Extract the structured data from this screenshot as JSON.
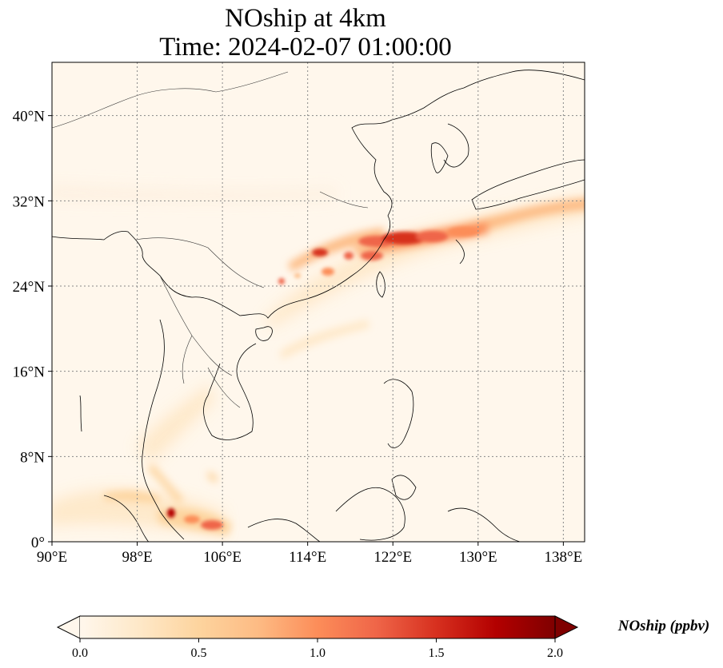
{
  "title": {
    "line1": "NOship at 4km",
    "line2": "Time: 2024-02-07 01:00:00"
  },
  "map": {
    "projection": "PlateCarree",
    "extent": {
      "lon": [
        90,
        140
      ],
      "lat": [
        0,
        45
      ]
    },
    "gridlines": "dotted",
    "coastlines": true,
    "borders": true,
    "lon_ticks": [
      {
        "value": 90,
        "label": "90°E"
      },
      {
        "value": 98,
        "label": "98°E"
      },
      {
        "value": 106,
        "label": "106°E"
      },
      {
        "value": 114,
        "label": "114°E"
      },
      {
        "value": 122,
        "label": "122°E"
      },
      {
        "value": 130,
        "label": "130°E"
      },
      {
        "value": 138,
        "label": "138°E"
      }
    ],
    "lat_ticks": [
      {
        "value": 0,
        "label": "0°"
      },
      {
        "value": 8,
        "label": "8°N"
      },
      {
        "value": 16,
        "label": "16°N"
      },
      {
        "value": 24,
        "label": "24°N"
      },
      {
        "value": 32,
        "label": "32°N"
      },
      {
        "value": 40,
        "label": "40°N"
      }
    ]
  },
  "colorbar": {
    "title": "NOship (ppbv)",
    "min": 0.0,
    "max": 2.0,
    "extend": "both",
    "colormap": "OrRd",
    "colors": [
      "#fff7ec",
      "#fee8c8",
      "#fdd49e",
      "#fdbb84",
      "#fc8d59",
      "#ef6548",
      "#d7301f",
      "#b30000",
      "#7f0000"
    ],
    "ticks": [
      {
        "value": 0.0,
        "label": "0.0"
      },
      {
        "value": 0.5,
        "label": "0.5"
      },
      {
        "value": 1.0,
        "label": "1.0"
      },
      {
        "value": 1.5,
        "label": "1.5"
      },
      {
        "value": 2.0,
        "label": "2.0"
      }
    ]
  }
}
